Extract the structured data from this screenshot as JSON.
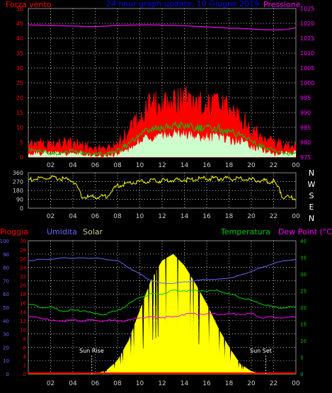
{
  "colors": {
    "background": "#000000",
    "grid": "#ffffff",
    "wind_speed": "#ff0000",
    "wind_avg": "#00cc00",
    "wind_gust_light": "#ccffcc",
    "pressure": "#ff00ff",
    "wind_dir": "#ffff00",
    "rain": "#ff0000",
    "humidity": "#6666ff",
    "solar": "#ffff00",
    "temperature": "#00cc00",
    "dew_point": "#ff00ff",
    "title": "#0000ff",
    "tick_left": "#ff0000",
    "tick_right": "#ff00ff",
    "tick_x": "#cccccc"
  },
  "chart_data": [
    {
      "type": "area",
      "title": "24 hour graph update: 10 Giugno 2019",
      "left_label": "Forza vento",
      "right_label": "Pressione",
      "ylim_left": [
        0,
        50
      ],
      "ylim_right": [
        975,
        1025
      ],
      "left_ticks": [
        "0",
        "5",
        "10",
        "15",
        "20",
        "25",
        "30",
        "35",
        "40",
        "45",
        "50"
      ],
      "right_ticks": [
        "975",
        "980",
        "985",
        "990",
        "995",
        "1000",
        "1005",
        "1010",
        "1015",
        "1020",
        "1025"
      ],
      "x_ticks": [
        "02",
        "04",
        "06",
        "08",
        "10",
        "12",
        "14",
        "16",
        "18",
        "20",
        "22",
        "00"
      ],
      "x": [
        0,
        1,
        2,
        3,
        4,
        5,
        6,
        7,
        8,
        9,
        10,
        11,
        12,
        13,
        14,
        15,
        16,
        17,
        18,
        19,
        20,
        21,
        22,
        23,
        24
      ],
      "series": [
        {
          "key": "wind_speed",
          "values": [
            4,
            4,
            3,
            4,
            4,
            3,
            2,
            2,
            4,
            7,
            12,
            15,
            16,
            17,
            17,
            16,
            15,
            15,
            14,
            12,
            8,
            5,
            4,
            3,
            3
          ]
        },
        {
          "key": "wind_avg",
          "values": [
            2,
            2,
            1,
            1,
            2,
            1,
            1,
            1,
            2,
            4,
            7,
            9,
            9,
            10,
            10,
            9,
            9,
            9,
            8,
            7,
            5,
            3,
            2,
            1,
            1
          ]
        },
        {
          "key": "wind_gust_light",
          "values": [
            1,
            1,
            1,
            1,
            1,
            1,
            0,
            0,
            1,
            2,
            5,
            6,
            6,
            7,
            7,
            6,
            6,
            6,
            5,
            5,
            3,
            2,
            1,
            1,
            1
          ]
        },
        {
          "key": "pressure",
          "values": [
            1019.5,
            1019.4,
            1019.3,
            1019.2,
            1019.1,
            1019.0,
            1018.9,
            1019.1,
            1019.3,
            1019.4,
            1019.5,
            1019.5,
            1019.4,
            1019.3,
            1019.2,
            1019.0,
            1018.8,
            1018.6,
            1018.4,
            1018.3,
            1018.1,
            1017.9,
            1017.8,
            1017.9,
            1018.5
          ]
        }
      ]
    },
    {
      "type": "line",
      "right_labels": [
        "N",
        "W",
        "S",
        "E",
        "N"
      ],
      "ylim": [
        0,
        360
      ],
      "y_ticks": [
        "0",
        "90",
        "180",
        "270",
        "360"
      ],
      "x_ticks": [
        "02",
        "04",
        "06",
        "08",
        "10",
        "12",
        "14",
        "16",
        "18",
        "20",
        "22",
        "00"
      ],
      "x": [
        0,
        1,
        2,
        3,
        4,
        5,
        6,
        7,
        8,
        9,
        10,
        11,
        12,
        13,
        14,
        15,
        16,
        17,
        18,
        19,
        20,
        21,
        22,
        23,
        24
      ],
      "series": [
        {
          "key": "wind_dir",
          "values": [
            290,
            300,
            305,
            300,
            280,
            110,
            115,
            120,
            230,
            255,
            270,
            275,
            280,
            285,
            290,
            295,
            300,
            305,
            300,
            295,
            290,
            280,
            270,
            110,
            105
          ]
        }
      ]
    },
    {
      "type": "line",
      "labels": {
        "rain": "Pioggia",
        "humidity": "Umidita",
        "solar": "Solar",
        "temperature": "Temperatura",
        "dew_point": "Dew Point (°C)"
      },
      "annotations": [
        "Sun Rise",
        "Sun Set"
      ],
      "sunrise_hour": 5.7,
      "sunset_hour": 21.3,
      "ylim_humidity": [
        0,
        100
      ],
      "ylim_rain": [
        0,
        30
      ],
      "ylim_temp": [
        0,
        40
      ],
      "humidity_ticks": [
        "0",
        "10",
        "20",
        "30",
        "40",
        "50",
        "60",
        "70",
        "80",
        "90",
        "100"
      ],
      "rain_ticks": [
        "0",
        "2",
        "4",
        "6",
        "8",
        "10",
        "12",
        "14",
        "16",
        "18",
        "20",
        "22",
        "24",
        "26",
        "28",
        "30"
      ],
      "temp_ticks": [
        "0",
        "5",
        "10",
        "15",
        "20",
        "25",
        "30",
        "35",
        "40"
      ],
      "x_ticks": [
        "02",
        "04",
        "06",
        "08",
        "10",
        "12",
        "14",
        "16",
        "18",
        "20",
        "22",
        "00"
      ],
      "x": [
        0,
        1,
        2,
        3,
        4,
        5,
        6,
        7,
        8,
        9,
        10,
        11,
        12,
        13,
        14,
        15,
        16,
        17,
        18,
        19,
        20,
        21,
        22,
        23,
        24
      ],
      "series": [
        {
          "key": "humidity",
          "values": [
            85,
            86,
            86,
            87,
            87,
            87,
            87,
            86,
            85,
            80,
            75,
            70,
            68,
            68,
            69,
            70,
            71,
            71,
            72,
            74,
            77,
            80,
            83,
            85,
            86
          ]
        },
        {
          "key": "temperature",
          "values": [
            21,
            20,
            20,
            19,
            19,
            19,
            18,
            18,
            19,
            21,
            23,
            24,
            24,
            25,
            25,
            25,
            25,
            25,
            24,
            23,
            22,
            21,
            20,
            20,
            20
          ]
        },
        {
          "key": "dew_point",
          "values": [
            17,
            17,
            16,
            16,
            16,
            16,
            16,
            16,
            16,
            16,
            17,
            17,
            17,
            17,
            18,
            18,
            18,
            18,
            18,
            18,
            18,
            17,
            17,
            17,
            17
          ]
        },
        {
          "key": "solar",
          "values": [
            0,
            0,
            0,
            0,
            0,
            0,
            0,
            20,
            80,
            200,
            380,
            560,
            680,
            720,
            650,
            540,
            420,
            280,
            160,
            60,
            15,
            0,
            0,
            0,
            0
          ]
        },
        {
          "key": "rain",
          "values": [
            0,
            0,
            0,
            0,
            0,
            0,
            0,
            0,
            0,
            0,
            0,
            0,
            0,
            0,
            0,
            0,
            0,
            0,
            0,
            0,
            0,
            0,
            0,
            0,
            0
          ]
        }
      ]
    }
  ]
}
